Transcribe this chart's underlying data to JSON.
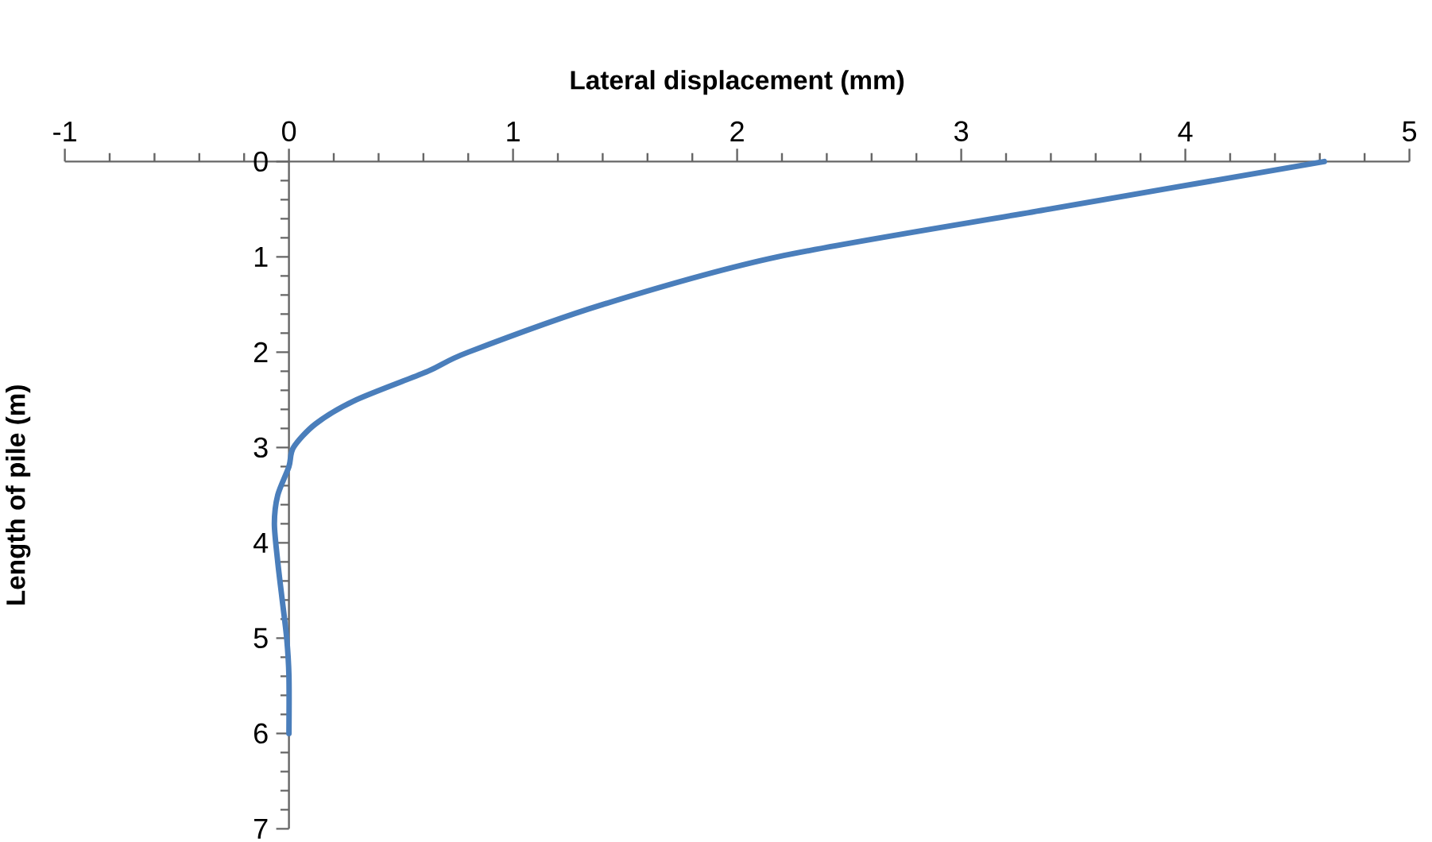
{
  "chart_data": {
    "type": "line",
    "xlabel": "Lateral displacement (mm)",
    "ylabel": "Length of pile (m)",
    "xlim": [
      -1,
      5
    ],
    "ylim": [
      7,
      0
    ],
    "xticks": [
      -1,
      0,
      1,
      2,
      3,
      4,
      5
    ],
    "yticks": [
      0,
      1,
      2,
      3,
      4,
      5,
      6,
      7
    ],
    "series": [
      {
        "color": "#4a7ebb",
        "x": [
          4.62,
          3.39,
          2.18,
          1.4,
          0.8,
          0.62,
          0.3,
          0.12,
          0.02,
          0.0,
          -0.05,
          -0.065,
          -0.05,
          -0.03,
          -0.01,
          0.0,
          0.0
        ],
        "values": [
          0,
          0.5,
          1.0,
          1.5,
          2.0,
          2.2,
          2.5,
          2.75,
          3.0,
          3.2,
          3.5,
          3.8,
          4.2,
          4.6,
          5.0,
          5.4,
          6.0
        ]
      }
    ]
  }
}
